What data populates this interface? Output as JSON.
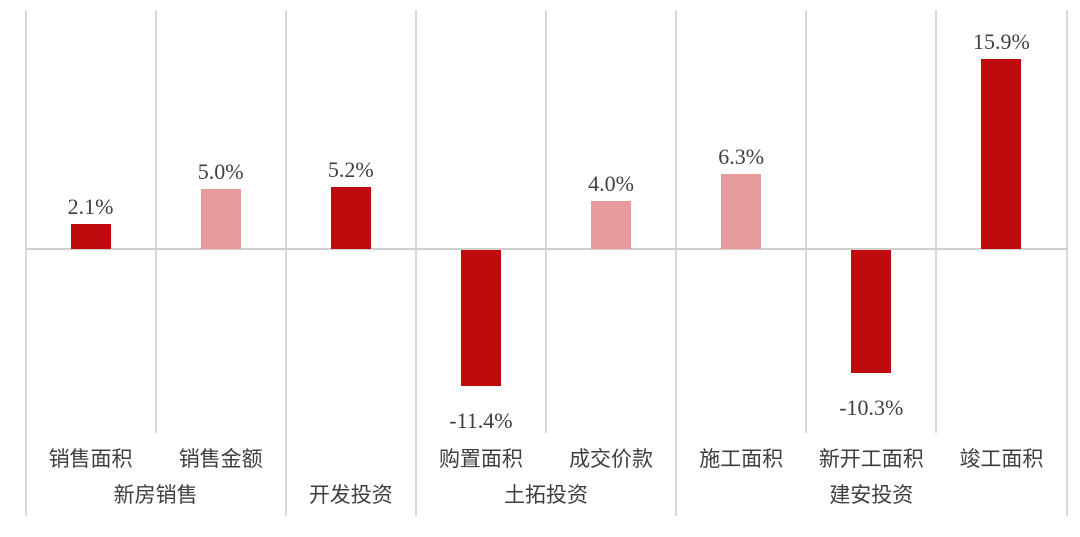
{
  "chart_data": {
    "type": "bar",
    "unit": "%",
    "orientation": "vertical",
    "legend": "none",
    "y_axis_visible": false,
    "baseline_value": 0,
    "approx_ylim": [
      -14,
      20
    ],
    "grid": "vertical separators between categories; full-height at group boundaries, short within groups; horizontal zero baseline",
    "groups": [
      {
        "label": "新房销售",
        "bars": [
          {
            "label": "销售面积",
            "value": 2.1,
            "display": "2.1%",
            "tone": "dark"
          },
          {
            "label": "销售金额",
            "value": 5.0,
            "display": "5.0%",
            "tone": "light"
          }
        ]
      },
      {
        "label": "开发投资",
        "bars": [
          {
            "label": "",
            "value": 5.2,
            "display": "5.2%",
            "tone": "dark"
          }
        ]
      },
      {
        "label": "土拓投资",
        "bars": [
          {
            "label": "购置面积",
            "value": -11.4,
            "display": "-11.4%",
            "tone": "dark"
          },
          {
            "label": "成交价款",
            "value": 4.0,
            "display": "4.0%",
            "tone": "light"
          }
        ]
      },
      {
        "label": "建安投资",
        "bars": [
          {
            "label": "施工面积",
            "value": 6.3,
            "display": "6.3%",
            "tone": "light"
          },
          {
            "label": "新开工面积",
            "value": -10.3,
            "display": "-10.3%",
            "tone": "dark"
          },
          {
            "label": "竣工面积",
            "value": 15.9,
            "display": "15.9%",
            "tone": "dark"
          }
        ]
      }
    ],
    "colors": {
      "bar_dark": "#c00b0e",
      "bar_light": "#e69a9c",
      "gridline": "#d9d9d9",
      "baseline": "#cfcfcf",
      "text": "#3f3f3f"
    }
  }
}
